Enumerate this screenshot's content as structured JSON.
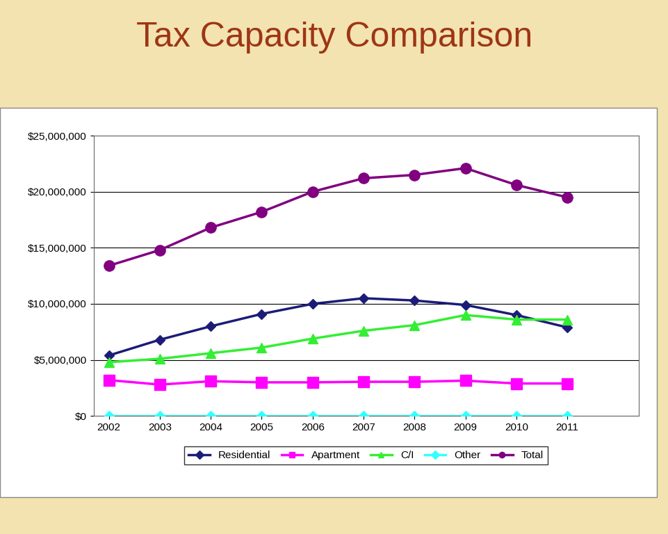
{
  "chart_data": {
    "type": "line",
    "title": "Tax Capacity Comparison",
    "categories": [
      "2002",
      "2003",
      "2004",
      "2005",
      "2006",
      "2007",
      "2008",
      "2009",
      "2010",
      "2011"
    ],
    "series": [
      {
        "name": "Residential",
        "color": "#1c1c78",
        "marker": "diamond",
        "values": [
          5400000,
          6800000,
          8000000,
          9100000,
          10000000,
          10500000,
          10300000,
          9900000,
          9000000,
          7900000
        ]
      },
      {
        "name": "Apartment",
        "color": "#ff00ff",
        "marker": "square",
        "values": [
          3200000,
          2800000,
          3100000,
          3000000,
          3000000,
          3050000,
          3050000,
          3150000,
          2900000,
          2900000
        ]
      },
      {
        "name": "C/I",
        "color": "#33ee33",
        "marker": "triangle",
        "values": [
          4800000,
          5100000,
          5600000,
          6100000,
          6900000,
          7600000,
          8100000,
          9000000,
          8600000,
          8600000
        ]
      },
      {
        "name": "Other",
        "color": "#33ffff",
        "marker": "diamond",
        "values": [
          0,
          0,
          0,
          0,
          0,
          0,
          0,
          0,
          0,
          0
        ]
      },
      {
        "name": "Total",
        "color": "#800080",
        "marker": "circle",
        "values": [
          13400000,
          14800000,
          16800000,
          18200000,
          20000000,
          21200000,
          21500000,
          22100000,
          20600000,
          19500000
        ]
      }
    ],
    "ylim": [
      0,
      25000000
    ],
    "yticks": [
      {
        "value": 0,
        "label": "$0"
      },
      {
        "value": 5000000,
        "label": "$5,000,000"
      },
      {
        "value": 10000000,
        "label": "$10,000,000"
      },
      {
        "value": 15000000,
        "label": "$15,000,000"
      },
      {
        "value": 20000000,
        "label": "$20,000,000"
      },
      {
        "value": 25000000,
        "label": "$25,000,000"
      }
    ],
    "grid": true,
    "legend": "bottom"
  }
}
